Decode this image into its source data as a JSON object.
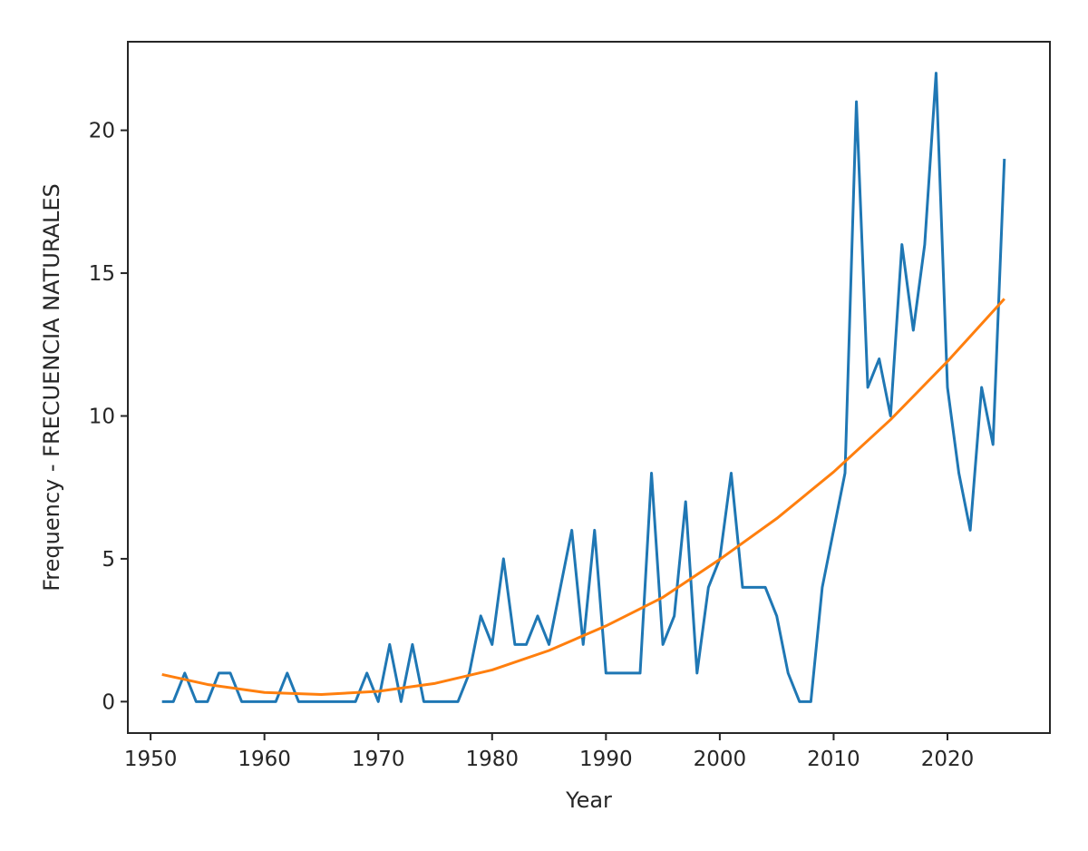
{
  "chart_data": {
    "type": "line",
    "title": "",
    "xlabel": "Year",
    "ylabel": "Frequency - FRECUENCIA NATURALES",
    "xlim": [
      1948,
      2029
    ],
    "ylim": [
      -1.1,
      23.1
    ],
    "xticks": [
      1950,
      1960,
      1970,
      1980,
      1990,
      2000,
      2010,
      2020
    ],
    "yticks": [
      0,
      5,
      10,
      15,
      20
    ],
    "grid": false,
    "series": [
      {
        "color": "#1f77b4",
        "x": [
          1951,
          1952,
          1953,
          1954,
          1955,
          1956,
          1957,
          1958,
          1959,
          1960,
          1961,
          1962,
          1963,
          1964,
          1965,
          1966,
          1967,
          1968,
          1969,
          1970,
          1971,
          1972,
          1973,
          1974,
          1975,
          1976,
          1977,
          1978,
          1979,
          1980,
          1981,
          1982,
          1983,
          1984,
          1985,
          1986,
          1987,
          1988,
          1989,
          1990,
          1991,
          1992,
          1993,
          1994,
          1995,
          1996,
          1997,
          1998,
          1999,
          2000,
          2001,
          2002,
          2003,
          2004,
          2005,
          2006,
          2007,
          2008,
          2009,
          2010,
          2011,
          2012,
          2013,
          2014,
          2015,
          2016,
          2017,
          2018,
          2019,
          2020,
          2021,
          2022,
          2023,
          2024,
          2025
        ],
        "y": [
          0,
          0,
          1,
          0,
          0,
          1,
          1,
          0,
          0,
          0,
          0,
          1,
          0,
          0,
          0,
          0,
          0,
          0,
          1,
          0,
          2,
          0,
          2,
          0,
          0,
          0,
          0,
          1,
          3,
          2,
          5,
          2,
          2,
          3,
          2,
          4,
          6,
          2,
          6,
          1,
          1,
          1,
          1,
          8,
          2,
          3,
          7,
          1,
          4,
          5,
          8,
          4,
          4,
          4,
          3,
          1,
          0,
          0,
          4,
          6,
          8,
          21,
          11,
          12,
          10,
          16,
          13,
          16,
          22,
          11,
          8,
          6,
          11,
          9,
          19
        ]
      },
      {
        "color": "#ff7f0e",
        "x": [
          1951,
          1955,
          1960,
          1965,
          1970,
          1975,
          1980,
          1985,
          1990,
          1995,
          2000,
          2005,
          2010,
          2015,
          2020,
          2025
        ],
        "y": [
          0.95,
          0.6,
          0.32,
          0.25,
          0.36,
          0.64,
          1.11,
          1.79,
          2.65,
          3.65,
          4.98,
          6.41,
          8.04,
          9.87,
          11.91,
          14.1
        ]
      }
    ]
  }
}
